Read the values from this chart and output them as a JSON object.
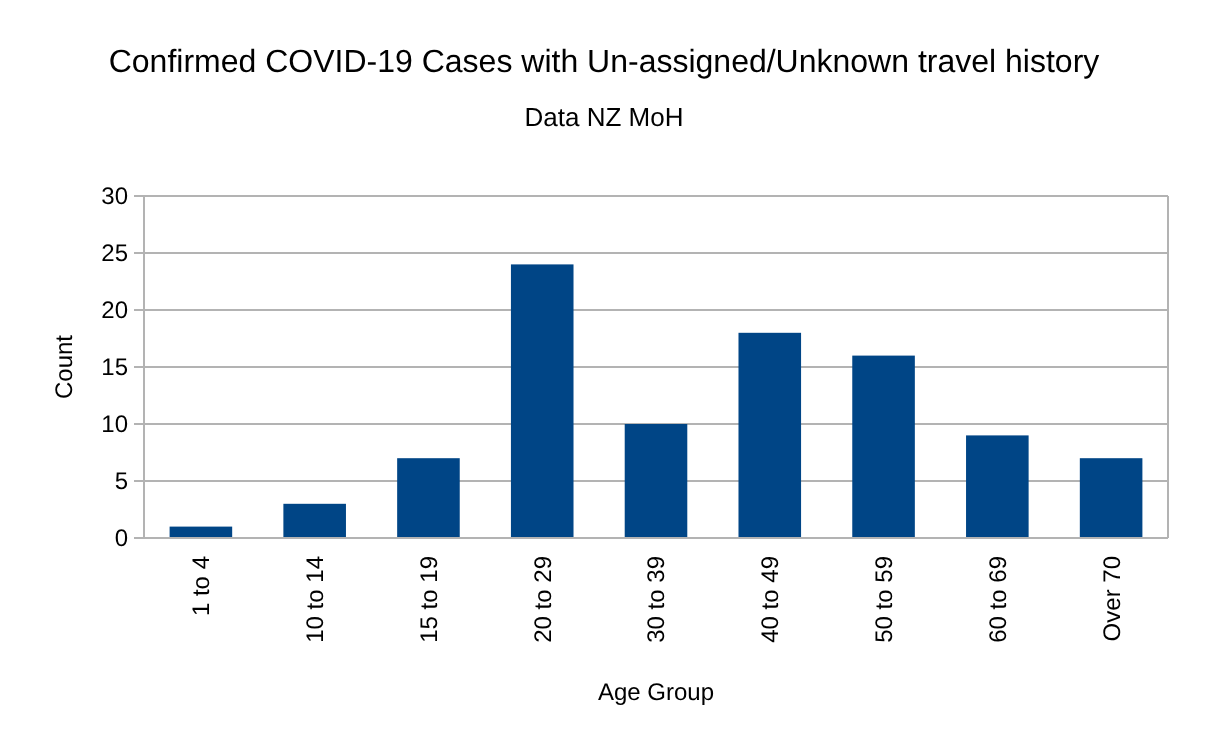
{
  "chart_data": {
    "type": "bar",
    "title": "Confirmed COVID-19 Cases with Un-assigned/Unknown travel history",
    "subtitle": "Data NZ MoH",
    "xlabel": "Age Group",
    "ylabel": "Count",
    "categories": [
      "1 to 4",
      "10 to 14",
      "15 to 19",
      "20 to 29",
      "30 to 39",
      "40 to 49",
      "50 to 59",
      "60 to 69",
      "Over 70"
    ],
    "values": [
      1,
      3,
      7,
      24,
      10,
      18,
      16,
      9,
      7
    ],
    "color": "#004586",
    "ylim": [
      0,
      30
    ],
    "yticks": [
      0,
      5,
      10,
      15,
      20,
      25,
      30
    ],
    "grid": "y"
  }
}
